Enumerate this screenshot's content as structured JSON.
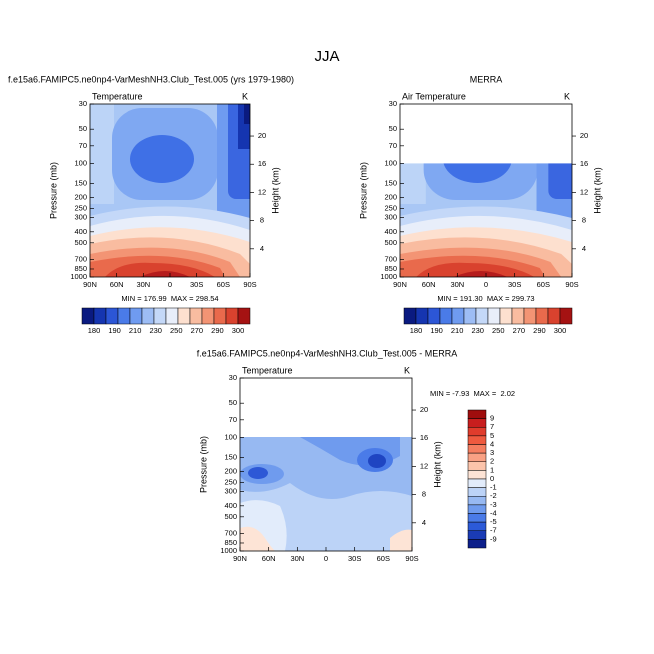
{
  "chart_data": {
    "type": "contour",
    "title": "JJA",
    "ylabel": "Pressure (mb)",
    "y2label": "Height (km)",
    "yscale": "log",
    "ylim": [
      1000,
      30
    ],
    "yticks": [
      30,
      50,
      70,
      100,
      150,
      200,
      250,
      300,
      400,
      500,
      700,
      850,
      1000
    ],
    "y2ticks": [
      4,
      8,
      12,
      16,
      20
    ],
    "categories": [
      "90N",
      "60N",
      "30N",
      "0",
      "30S",
      "60S",
      "90S"
    ],
    "panels": [
      {
        "title": "f.e15a6.FAMIPC5.ne0np4-VarMeshNH3.Club_Test.005 (yrs 1979-1980)",
        "variable": "Temperature",
        "units": "K",
        "stats": "MIN = 176.99  MAX = 298.54",
        "colorbar_labels": [
          180,
          190,
          210,
          230,
          250,
          270,
          290,
          300
        ],
        "colorbar_colors": [
          "#0a1a80",
          "#1535b0",
          "#2c56d6",
          "#4a7be8",
          "#6f9bf0",
          "#9dbdf5",
          "#c4d8f8",
          "#e8eefa",
          "#fde0cf",
          "#f9bca0",
          "#f39474",
          "#e96a4c",
          "#d9422e",
          "#a51212"
        ]
      },
      {
        "title": "MERRA",
        "variable": "Air Temperature",
        "units": "K",
        "stats": "MIN = 191.30  MAX = 299.73",
        "colorbar_labels": [
          180,
          190,
          210,
          230,
          250,
          270,
          290,
          300
        ],
        "colorbar_colors": [
          "#0a1a80",
          "#1535b0",
          "#2c56d6",
          "#4a7be8",
          "#6f9bf0",
          "#9dbdf5",
          "#c4d8f8",
          "#e8eefa",
          "#fde0cf",
          "#f9bca0",
          "#f39474",
          "#e96a4c",
          "#d9422e",
          "#a51212"
        ]
      },
      {
        "title": "f.e15a6.FAMIPC5.ne0np4-VarMeshNH3.Club_Test.005 - MERRA",
        "variable": "Temperature",
        "units": "K",
        "stats": "MIN = -7.93  MAX =  2.02",
        "colorbar_labels": [
          9,
          7,
          5,
          4,
          3,
          2,
          1,
          0,
          -1,
          -2,
          -3,
          -4,
          -5,
          -7,
          -9
        ],
        "colorbar_colors": [
          "#a00d0d",
          "#c81e1e",
          "#e03c2c",
          "#ef5a3f",
          "#f57e60",
          "#f9a184",
          "#fcc4ab",
          "#fde4d6",
          "#e2ecfb",
          "#bcd3f7",
          "#97b9f2",
          "#6f9bee",
          "#4a7be8",
          "#2c5ad8",
          "#1a3bb5",
          "#0c1f8a"
        ]
      }
    ]
  }
}
